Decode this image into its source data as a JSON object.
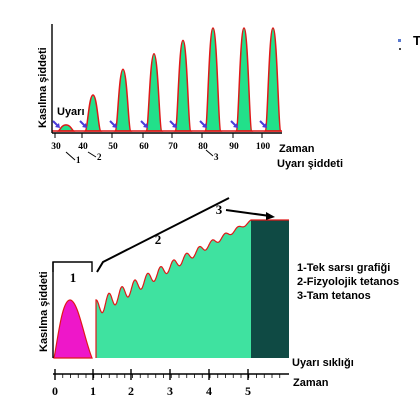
{
  "colors": {
    "twitch_fill": "#22e08a",
    "twitch_outline": "#e01818",
    "tetanus_fill": "#3fe2a0",
    "complete_tetanus_fill": "#0f4a44",
    "single_twitch_fill": "#ee17c9",
    "stimulus_arrow": "#4a3ad8",
    "axis": "#000000"
  },
  "top_panel": {
    "y_axis_label": "Kasılma şiddeti",
    "stimulus_label": "Uyarı",
    "x_axis_label": "Zaman",
    "x_axis_label_2": "Uyarı şiddeti",
    "ticks": [
      "30",
      "40",
      "50",
      "60",
      "70",
      "80",
      "90",
      "100"
    ],
    "callouts": [
      "1",
      "2",
      "3"
    ],
    "twitch_heights": [
      0.06,
      0.35,
      0.6,
      0.75,
      0.88,
      1.0,
      1.0,
      1.0
    ]
  },
  "bottom_panel": {
    "y_axis_label": "Kasılma şiddeti",
    "x_axis_label": "Zaman",
    "frequency_label": "Uyarı sıklığı",
    "ticks": [
      "0",
      "1",
      "2",
      "3",
      "4",
      "5"
    ],
    "region_numbers": [
      "1",
      "2",
      "3"
    ],
    "legend": [
      "1-Tek sarsı grafiği",
      "2-Fizyolojik tetanos",
      "3-Tam tetanos"
    ]
  }
}
